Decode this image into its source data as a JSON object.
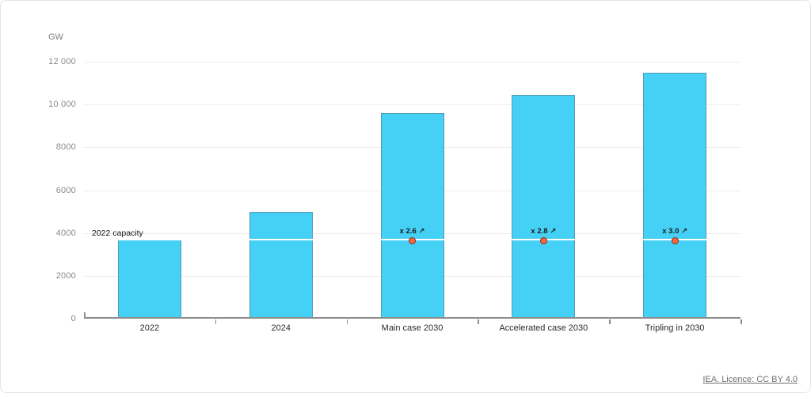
{
  "page": {
    "unit_label": "GW",
    "source_link": "IEA. Licence: CC BY 4.0"
  },
  "chart_data": {
    "type": "bar",
    "title": "",
    "ylabel": "GW",
    "xlabel": "",
    "categories": [
      "2022",
      "2024",
      "Main case 2030",
      "Accelerated case 2030",
      "Tripling in 2030"
    ],
    "values": [
      3700,
      4970,
      9600,
      10450,
      11480
    ],
    "ylim": [
      0,
      12000
    ],
    "yticks": [
      {
        "value": 0,
        "label": "0"
      },
      {
        "value": 2000,
        "label": "2000"
      },
      {
        "value": 4000,
        "label": "4000"
      },
      {
        "value": 6000,
        "label": "6000"
      },
      {
        "value": 8000,
        "label": "8000"
      },
      {
        "value": 10000,
        "label": "10 000"
      },
      {
        "value": 12000,
        "label": "12 000"
      }
    ],
    "grid": true,
    "legend_position": "none",
    "bar_color": "#45d0f5",
    "reference_line": {
      "label": "2022 capacity",
      "value": 3700,
      "color": "#ffffff"
    },
    "annotations": [
      {
        "category_index": 2,
        "label": "x 2.6 ↗"
      },
      {
        "category_index": 3,
        "label": "x 2.8 ↗"
      },
      {
        "category_index": 4,
        "label": "x 3.0 ↗"
      }
    ],
    "dot_style": {
      "fill": "#f4683f",
      "stroke": "#8f2a12"
    }
  }
}
